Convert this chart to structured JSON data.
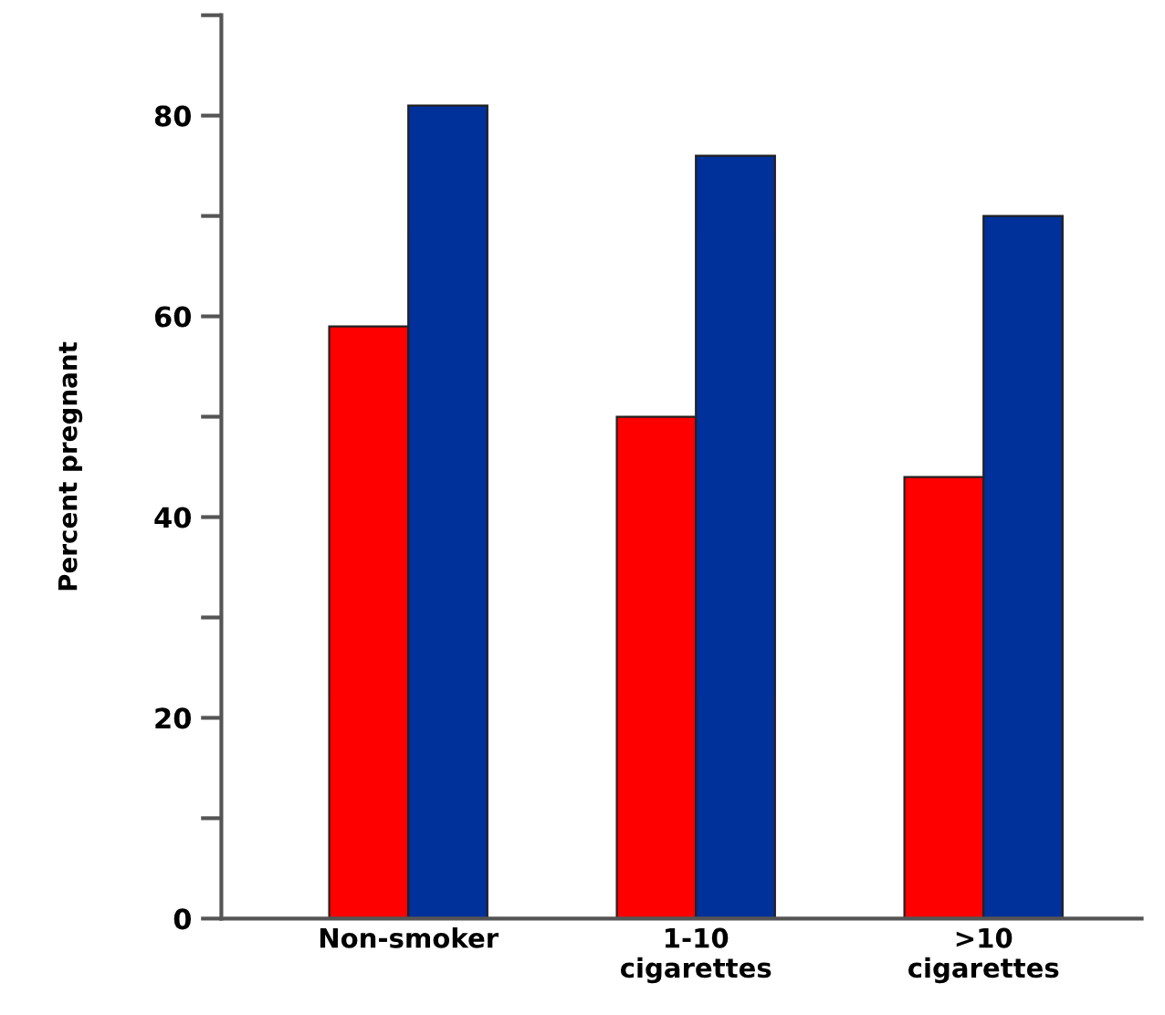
{
  "chart_data": {
    "type": "bar",
    "ylabel": "Percent pregnant",
    "categories": [
      "Non-smoker",
      "1-10\ncigarettes",
      ">10\ncigarettes"
    ],
    "series": [
      {
        "color": "#ff0000",
        "values": [
          59,
          50,
          44
        ]
      },
      {
        "color": "#00309a",
        "values": [
          81,
          76,
          70
        ]
      }
    ],
    "ylim": [
      0,
      90
    ],
    "yticks": [
      0,
      {
        "value": 10,
        "label": null
      },
      20,
      {
        "value": 30,
        "label": null
      },
      40,
      {
        "value": 50,
        "label": null
      },
      60,
      {
        "value": 70,
        "label": null
      },
      80,
      {
        "value": 90,
        "label": null
      }
    ],
    "grid": false
  }
}
